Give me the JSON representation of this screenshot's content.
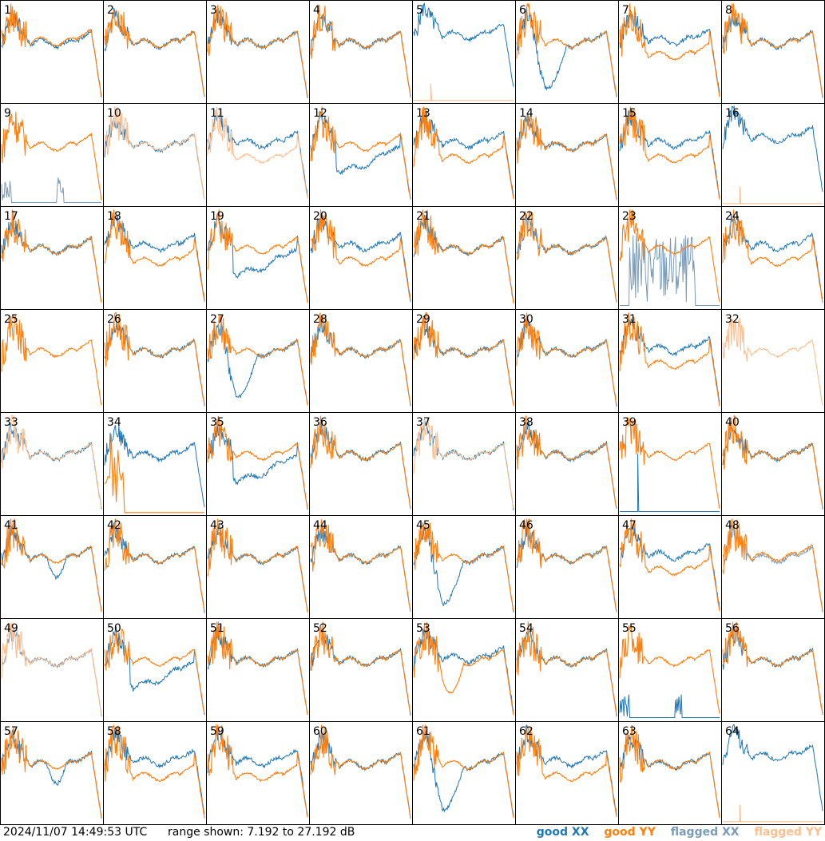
{
  "footer": {
    "timestamp": "2024/11/07 14:49:53 UTC",
    "range_label": "range shown: 7.192 to 27.192 dB"
  },
  "legend": {
    "good_xx": "good XX",
    "good_yy": "good YY",
    "flagged_xx": "flagged XX",
    "flagged_yy": "flagged YY"
  },
  "colors": {
    "good_xx": "#1f77b4",
    "good_yy": "#ff7f0e",
    "flagged_xx": "#7b9bb8",
    "flagged_yy": "#fdbf8f",
    "grid_line": "#000000"
  },
  "chart_data": {
    "type": "line",
    "title": "",
    "xlabel": "",
    "ylabel": "",
    "ylim": [
      7.192,
      27.192
    ],
    "grid_rows": 8,
    "grid_cols": 8,
    "panels": [
      {
        "label": "1",
        "xx": "good",
        "yy": "good",
        "variant": "crossover"
      },
      {
        "label": "2",
        "xx": "good",
        "yy": "good",
        "variant": "normal"
      },
      {
        "label": "3",
        "xx": "good",
        "yy": "good",
        "variant": "normal"
      },
      {
        "label": "4",
        "xx": "good",
        "yy": "good",
        "variant": "normal"
      },
      {
        "label": "5",
        "xx": "good",
        "yy": "flagged",
        "variant": "yy_spike"
      },
      {
        "label": "6",
        "xx": "good",
        "yy": "good",
        "variant": "xx_dip"
      },
      {
        "label": "7",
        "xx": "good",
        "yy": "good",
        "variant": "yy_low"
      },
      {
        "label": "8",
        "xx": "good",
        "yy": "good",
        "variant": "normal"
      },
      {
        "label": "9",
        "xx": "flagged",
        "yy": "good",
        "variant": "xx_spikes"
      },
      {
        "label": "10",
        "xx": "good",
        "yy": "flagged",
        "variant": "normal"
      },
      {
        "label": "11",
        "xx": "good",
        "yy": "flagged",
        "variant": "yy_low"
      },
      {
        "label": "12",
        "xx": "good",
        "yy": "good",
        "variant": "xx_low"
      },
      {
        "label": "13",
        "xx": "good",
        "yy": "good",
        "variant": "yy_low"
      },
      {
        "label": "14",
        "xx": "good",
        "yy": "good",
        "variant": "normal"
      },
      {
        "label": "15",
        "xx": "good",
        "yy": "good",
        "variant": "yy_low"
      },
      {
        "label": "16",
        "xx": "good",
        "yy": "flagged",
        "variant": "yy_spike"
      },
      {
        "label": "17",
        "xx": "good",
        "yy": "good",
        "variant": "normal"
      },
      {
        "label": "18",
        "xx": "good",
        "yy": "good",
        "variant": "yy_low"
      },
      {
        "label": "19",
        "xx": "good",
        "yy": "good",
        "variant": "xx_low"
      },
      {
        "label": "20",
        "xx": "good",
        "yy": "good",
        "variant": "yy_low"
      },
      {
        "label": "21",
        "xx": "good",
        "yy": "good",
        "variant": "normal"
      },
      {
        "label": "22",
        "xx": "good",
        "yy": "good",
        "variant": "normal"
      },
      {
        "label": "23",
        "xx": "flagged",
        "yy": "good",
        "variant": "xx_noise"
      },
      {
        "label": "24",
        "xx": "good",
        "yy": "good",
        "variant": "yy_low"
      },
      {
        "label": "25",
        "xx": "good",
        "yy": "good",
        "variant": "yy_only"
      },
      {
        "label": "26",
        "xx": "good",
        "yy": "good",
        "variant": "normal"
      },
      {
        "label": "27",
        "xx": "good",
        "yy": "good",
        "variant": "xx_dip"
      },
      {
        "label": "28",
        "xx": "good",
        "yy": "good",
        "variant": "normal"
      },
      {
        "label": "29",
        "xx": "good",
        "yy": "good",
        "variant": "normal"
      },
      {
        "label": "30",
        "xx": "good",
        "yy": "good",
        "variant": "normal"
      },
      {
        "label": "31",
        "xx": "good",
        "yy": "good",
        "variant": "yy_low"
      },
      {
        "label": "32",
        "xx": "flagged",
        "yy": "flagged",
        "variant": "yy_only"
      },
      {
        "label": "33",
        "xx": "good",
        "yy": "flagged",
        "variant": "normal"
      },
      {
        "label": "34",
        "xx": "good",
        "yy": "good",
        "variant": "yy_dead"
      },
      {
        "label": "35",
        "xx": "good",
        "yy": "good",
        "variant": "xx_low"
      },
      {
        "label": "36",
        "xx": "good",
        "yy": "good",
        "variant": "normal"
      },
      {
        "label": "37",
        "xx": "good",
        "yy": "flagged",
        "variant": "normal"
      },
      {
        "label": "38",
        "xx": "good",
        "yy": "good",
        "variant": "normal"
      },
      {
        "label": "39",
        "xx": "good",
        "yy": "good",
        "variant": "xx_spike"
      },
      {
        "label": "40",
        "xx": "good",
        "yy": "good",
        "variant": "normal"
      },
      {
        "label": "41",
        "xx": "good",
        "yy": "good",
        "variant": "xx_dip_mid"
      },
      {
        "label": "42",
        "xx": "good",
        "yy": "good",
        "variant": "normal"
      },
      {
        "label": "43",
        "xx": "good",
        "yy": "good",
        "variant": "normal"
      },
      {
        "label": "44",
        "xx": "good",
        "yy": "good",
        "variant": "normal"
      },
      {
        "label": "45",
        "xx": "good",
        "yy": "good",
        "variant": "xx_dip"
      },
      {
        "label": "46",
        "xx": "good",
        "yy": "good",
        "variant": "normal"
      },
      {
        "label": "47",
        "xx": "good",
        "yy": "good",
        "variant": "yy_low"
      },
      {
        "label": "48",
        "xx": "flagged",
        "yy": "good",
        "variant": "crossover"
      },
      {
        "label": "49",
        "xx": "flagged",
        "yy": "flagged",
        "variant": "normal"
      },
      {
        "label": "50",
        "xx": "good",
        "yy": "good",
        "variant": "xx_low"
      },
      {
        "label": "51",
        "xx": "good",
        "yy": "good",
        "variant": "normal"
      },
      {
        "label": "52",
        "xx": "good",
        "yy": "good",
        "variant": "normal"
      },
      {
        "label": "53",
        "xx": "good",
        "yy": "good",
        "variant": "yy_dip"
      },
      {
        "label": "54",
        "xx": "good",
        "yy": "good",
        "variant": "normal"
      },
      {
        "label": "55",
        "xx": "good",
        "yy": "good",
        "variant": "xx_spikes"
      },
      {
        "label": "56",
        "xx": "good",
        "yy": "good",
        "variant": "normal"
      },
      {
        "label": "57",
        "xx": "good",
        "yy": "good",
        "variant": "xx_dip_mid"
      },
      {
        "label": "58",
        "xx": "good",
        "yy": "good",
        "variant": "yy_low"
      },
      {
        "label": "59",
        "xx": "good",
        "yy": "good",
        "variant": "yy_low"
      },
      {
        "label": "60",
        "xx": "good",
        "yy": "good",
        "variant": "normal"
      },
      {
        "label": "61",
        "xx": "good",
        "yy": "good",
        "variant": "xx_dip"
      },
      {
        "label": "62",
        "xx": "good",
        "yy": "good",
        "variant": "yy_low"
      },
      {
        "label": "63",
        "xx": "good",
        "yy": "good",
        "variant": "normal"
      },
      {
        "label": "64",
        "xx": "good",
        "yy": "flagged",
        "variant": "yy_spike"
      }
    ]
  }
}
